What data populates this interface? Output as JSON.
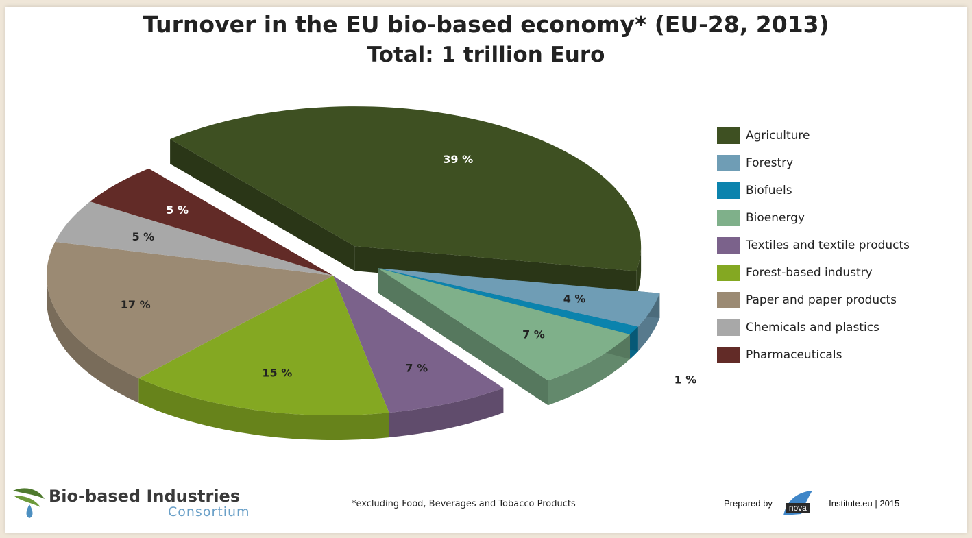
{
  "title": "Turnover in the EU bio-based economy* (EU-28, 2013)",
  "subtitle": "Total: 1 trillion Euro",
  "chart_data": {
    "type": "pie",
    "title": "Turnover in the EU bio-based economy* (EU-28, 2013)",
    "subtitle": "Total: 1 trillion Euro",
    "unit": "%",
    "legend_placement": "right",
    "slices": [
      {
        "name": "Agriculture",
        "value": 39,
        "label": "39 %",
        "color": "#3e5022",
        "exploded": true
      },
      {
        "name": "Forestry",
        "value": 4,
        "label": "4 %",
        "color": "#6f9db5",
        "exploded": true
      },
      {
        "name": "Biofuels",
        "value": 1,
        "label": "1 %",
        "color": "#0b83ad",
        "exploded": true
      },
      {
        "name": "Bioenergy",
        "value": 7,
        "label": "7 %",
        "color": "#7fb08a",
        "exploded": true
      },
      {
        "name": "Textiles and textile products",
        "value": 7,
        "label": "7 %",
        "color": "#7b628b",
        "exploded": false
      },
      {
        "name": "Forest-based industry",
        "value": 15,
        "label": "15 %",
        "color": "#84a822",
        "exploded": false
      },
      {
        "name": "Paper and paper products",
        "value": 17,
        "label": "17 %",
        "color": "#9b8a73",
        "exploded": false
      },
      {
        "name": "Chemicals and plastics",
        "value": 5,
        "label": "5 %",
        "color": "#a8a8a8",
        "exploded": false
      },
      {
        "name": "Pharmaceuticals",
        "value": 5,
        "label": "5 %",
        "color": "#622b27",
        "exploded": false
      }
    ]
  },
  "footnote": "*excluding Food, Beverages and Tobacco Products",
  "logo_left": {
    "name": "Bio-based Industries",
    "sub": "Consortium",
    "icon": "leaf-drop-logo"
  },
  "credit": {
    "prefix": "Prepared by",
    "brand": "nova",
    "suffix": "-Institute.eu | 2015",
    "icon": "nova-sail-logo"
  }
}
